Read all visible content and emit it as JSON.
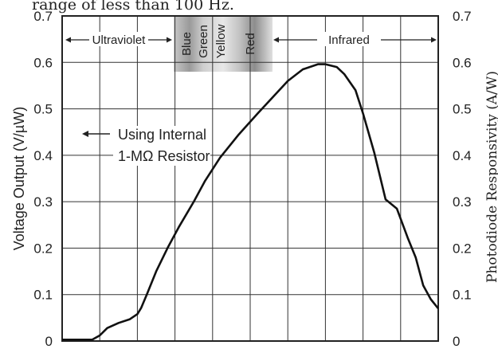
{
  "caption": "range of less than 100 Hz.",
  "chart_data": {
    "type": "line",
    "ylabel": "Voltage Output (V/µW)",
    "ylabel_right": "Photodiode Responsivity (A/W)",
    "ylim": [
      0,
      0.7
    ],
    "yticks": [
      "0",
      "0.1",
      "0.2",
      "0.3",
      "0.4",
      "0.5",
      "0.6",
      "0.7"
    ],
    "yticks_right": [
      "0",
      "0.1",
      "0.2",
      "0.3",
      "0.4",
      "0.5",
      "0.6",
      "0.7"
    ],
    "grid": true,
    "x_gridlines": 9,
    "regions": {
      "ultraviolet": "Ultraviolet",
      "blue": "Blue",
      "green": "Green",
      "yellow": "Yellow",
      "red": "Red",
      "infrared": "Infrared"
    },
    "annotation": [
      "Using Internal",
      "1-MΩ Resistor"
    ],
    "series": [
      {
        "x": [
          0.0,
          0.04,
          0.08,
          0.1,
          0.12,
          0.15,
          0.18,
          0.2,
          0.21,
          0.225,
          0.25,
          0.28,
          0.31,
          0.35,
          0.38,
          0.42,
          0.47,
          0.52,
          0.56,
          0.6,
          0.64,
          0.68,
          0.7,
          0.73,
          0.75,
          0.78,
          0.8,
          0.83,
          0.86,
          0.89,
          0.92,
          0.94,
          0.95,
          0.96,
          0.98,
          1.0
        ],
        "y": [
          0.003,
          0.003,
          0.003,
          0.012,
          0.028,
          0.039,
          0.047,
          0.058,
          0.071,
          0.1,
          0.15,
          0.2,
          0.245,
          0.3,
          0.345,
          0.395,
          0.445,
          0.49,
          0.525,
          0.56,
          0.585,
          0.596,
          0.596,
          0.59,
          0.575,
          0.54,
          0.49,
          0.405,
          0.305,
          0.285,
          0.22,
          0.18,
          0.15,
          0.12,
          0.09,
          0.07
        ]
      }
    ]
  }
}
